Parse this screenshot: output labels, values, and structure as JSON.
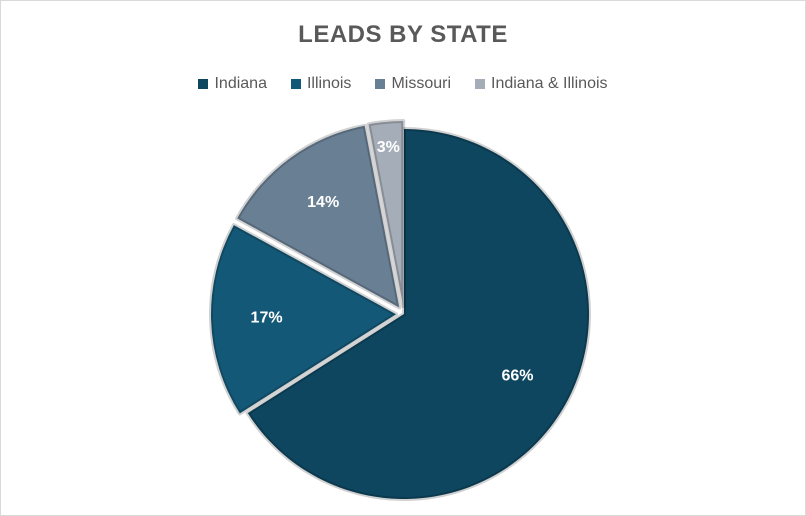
{
  "chart_data": {
    "type": "pie",
    "title": "LEADS BY STATE",
    "legend_position": "top",
    "categories": [
      "Indiana",
      "Illinois",
      "Missouri",
      "Indiana & Illinois"
    ],
    "values": [
      66,
      17,
      14,
      3
    ],
    "labels": [
      "66%",
      "17%",
      "14%",
      "3%"
    ],
    "colors": [
      "#0e4660",
      "#145877",
      "#697f94",
      "#a5adb8"
    ],
    "exploded": [
      false,
      true,
      true,
      true
    ]
  }
}
